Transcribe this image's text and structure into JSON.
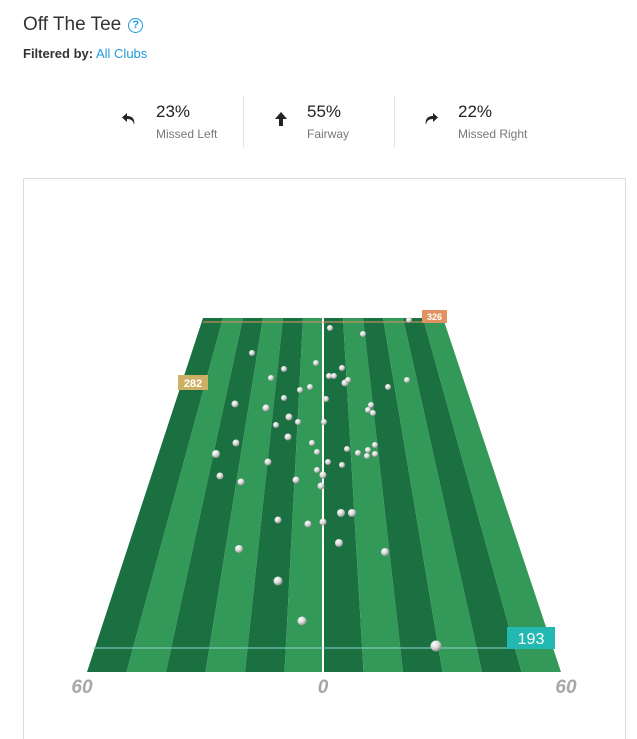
{
  "header": {
    "title": "Off The Tee",
    "help_icon": "help-circle-icon",
    "help_symbol": "?"
  },
  "filter": {
    "label": "Filtered by:",
    "value": "All Clubs"
  },
  "stats": [
    {
      "id": "missed-left",
      "percent": "23%",
      "label": "Missed Left",
      "icon": "curve-left-arrow-icon"
    },
    {
      "id": "fairway",
      "percent": "55%",
      "label": "Fairway",
      "icon": "up-arrow-icon"
    },
    {
      "id": "missed-right",
      "percent": "22%",
      "label": "Missed Right",
      "icon": "curve-right-arrow-icon"
    }
  ],
  "field": {
    "axis_left": "60",
    "axis_center": "0",
    "axis_right": "60",
    "markers": {
      "max": "326",
      "mid": "282",
      "min": "193"
    },
    "colors": {
      "dark_stripe": "#1a7040",
      "light_stripe": "#339958",
      "max_marker": "#e19262",
      "mid_marker": "#cdb064",
      "min_marker": "#23b9b2"
    }
  }
}
